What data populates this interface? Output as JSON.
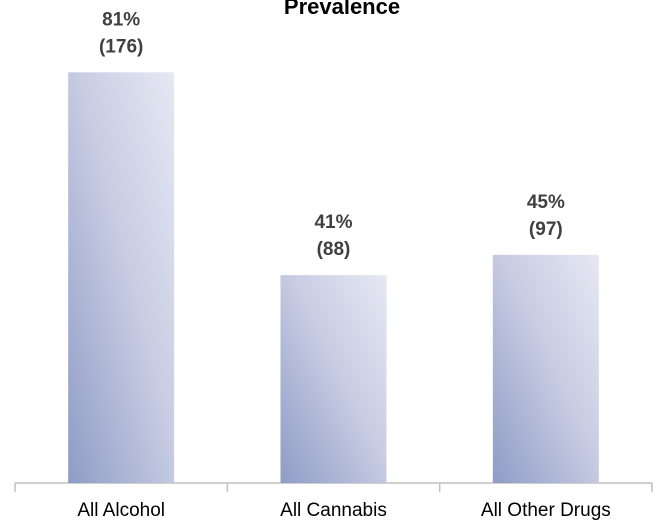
{
  "chart_data": {
    "type": "bar",
    "title": "Prevalence",
    "categories": [
      "All Alcohol",
      "All Cannabis",
      "All Other Drugs"
    ],
    "values": [
      81,
      41,
      45
    ],
    "value_labels": [
      "81%",
      "41%",
      "45%"
    ],
    "count_labels": [
      "(176)",
      "(88)",
      "(97)"
    ],
    "ylim": [
      0,
      100
    ]
  }
}
